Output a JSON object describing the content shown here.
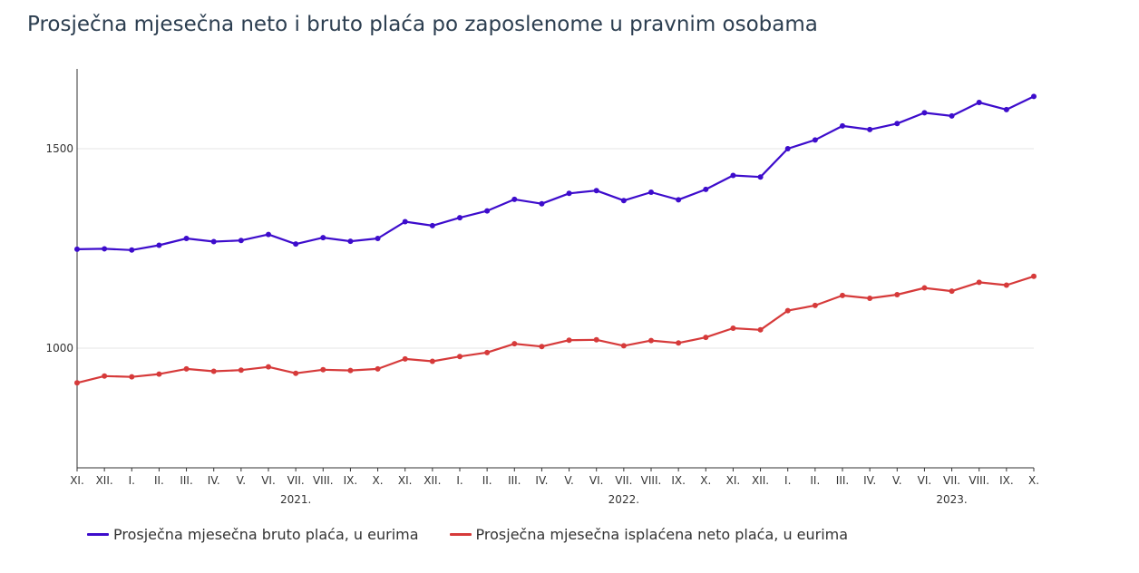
{
  "title": "Prosječna mjesečna neto i bruto plaća po zaposlenome u pravnim osobama",
  "chart_data": {
    "type": "line",
    "title": "Prosječna mjesečna neto i bruto plaća po zaposlenome u pravnim osobama",
    "xlabel": "",
    "ylabel": "",
    "ylim": [
      700,
      1700
    ],
    "yticks": [
      1000,
      1500
    ],
    "grid": true,
    "legend_position": "bottom-left",
    "categories": [
      "XI.",
      "XII.",
      "I.",
      "II.",
      "III.",
      "IV.",
      "V.",
      "VI.",
      "VII.",
      "VIII.",
      "IX.",
      "X.",
      "XI.",
      "XII.",
      "I.",
      "II.",
      "III.",
      "IV.",
      "V.",
      "VI.",
      "VII.",
      "VIII.",
      "IX.",
      "X.",
      "XI.",
      "XII.",
      "I.",
      "II.",
      "III.",
      "IV.",
      "V.",
      "VI.",
      "VII.",
      "VIII.",
      "IX.",
      "X."
    ],
    "year_labels": [
      {
        "label": "2021.",
        "index": 8
      },
      {
        "label": "2022.",
        "index": 20
      },
      {
        "label": "2023.",
        "index": 32
      }
    ],
    "series": [
      {
        "name": "Prosječna mjesečna bruto plaća, u eurima",
        "color": "#3d0ccc",
        "values": [
          1248,
          1249,
          1246,
          1258,
          1275,
          1267,
          1270,
          1285,
          1261,
          1277,
          1268,
          1275,
          1317,
          1307,
          1327,
          1344,
          1373,
          1362,
          1388,
          1395,
          1370,
          1391,
          1372,
          1398,
          1433,
          1429,
          1500,
          1522,
          1557,
          1548,
          1563,
          1590,
          1582,
          1616,
          1598,
          1631
        ]
      },
      {
        "name": "Prosječna mjesečna isplaćena neto plaća, u eurima",
        "color": "#d63a3a",
        "values": [
          913,
          930,
          928,
          935,
          948,
          942,
          945,
          953,
          937,
          946,
          944,
          948,
          973,
          967,
          979,
          989,
          1011,
          1004,
          1020,
          1021,
          1006,
          1019,
          1013,
          1027,
          1050,
          1046,
          1094,
          1107,
          1132,
          1125,
          1134,
          1151,
          1143,
          1165,
          1158,
          1180
        ]
      }
    ]
  }
}
